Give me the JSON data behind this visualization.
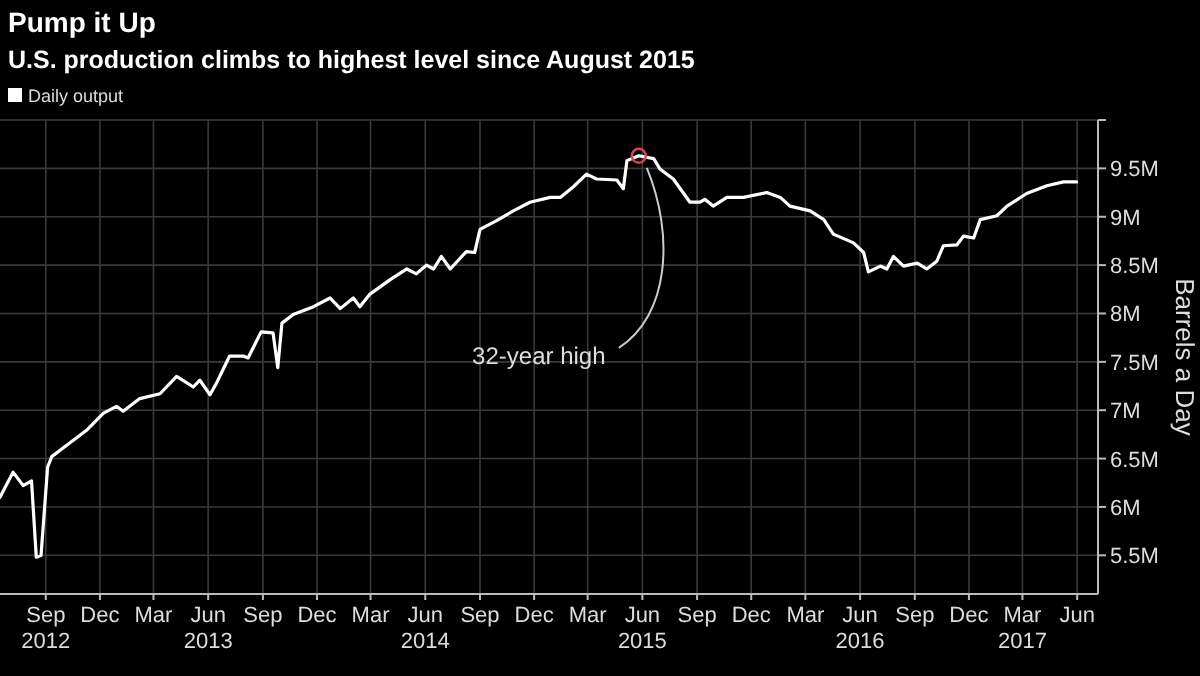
{
  "chart_data": {
    "type": "line",
    "title": "Pump it Up",
    "subtitle": "U.S. production climbs to highest level since August 2015",
    "ylabel": "Barrels a Day",
    "x": [
      "2012-06-30",
      "2012-07-22",
      "2012-08-08",
      "2012-08-22",
      "2012-08-30",
      "2012-09-07",
      "2012-09-18",
      "2012-09-25",
      "2012-10-14",
      "2012-11-22",
      "2012-12-21",
      "2013-01-12",
      "2013-01-23",
      "2013-02-20",
      "2013-03-26",
      "2013-04-23",
      "2013-05-21",
      "2013-06-01",
      "2013-06-18",
      "2013-06-29",
      "2013-07-21",
      "2013-08-13",
      "2013-08-21",
      "2013-09-12",
      "2013-10-02",
      "2013-10-10",
      "2013-10-17",
      "2013-11-05",
      "2013-12-09",
      "2014-01-06",
      "2014-01-23",
      "2014-02-14",
      "2014-02-25",
      "2014-03-14",
      "2014-04-17",
      "2014-05-15",
      "2014-05-31",
      "2014-06-17",
      "2014-06-29",
      "2014-07-12",
      "2014-07-27",
      "2014-08-23",
      "2014-09-06",
      "2014-09-15",
      "2014-10-13",
      "2014-11-10",
      "2014-12-08",
      "2015-01-11",
      "2015-01-28",
      "2015-02-19",
      "2015-03-13",
      "2015-03-30",
      "2015-05-03",
      "2015-05-14",
      "2015-05-20",
      "2015-06-09",
      "2015-07-04",
      "2015-07-15",
      "2015-08-06",
      "2015-09-03",
      "2015-09-20",
      "2015-09-28",
      "2015-10-12",
      "2015-11-04",
      "2015-12-02",
      "2016-01-10",
      "2016-02-02",
      "2016-02-18",
      "2016-03-23",
      "2016-04-15",
      "2016-05-01",
      "2016-06-04",
      "2016-06-21",
      "2016-06-29",
      "2016-07-19",
      "2016-07-30",
      "2016-08-10",
      "2016-08-27",
      "2016-09-19",
      "2016-10-05",
      "2016-10-22",
      "2016-11-02",
      "2016-11-25",
      "2016-12-06",
      "2016-12-23",
      "2017-01-03",
      "2017-01-31",
      "2017-02-17",
      "2017-03-22",
      "2017-04-25",
      "2017-05-23",
      "2017-06-14"
    ],
    "series": [
      {
        "name": "Daily output",
        "color": "#ffffff",
        "values": [
          6.1,
          6.36,
          6.22,
          6.27,
          5.48,
          5.5,
          6.41,
          6.52,
          6.61,
          6.79,
          6.97,
          7.04,
          6.99,
          7.12,
          7.17,
          7.35,
          7.24,
          7.31,
          7.16,
          7.28,
          7.56,
          7.56,
          7.54,
          7.81,
          7.8,
          7.44,
          7.9,
          7.99,
          8.07,
          8.16,
          8.05,
          8.16,
          8.07,
          8.2,
          8.35,
          8.46,
          8.41,
          8.5,
          8.46,
          8.59,
          8.46,
          8.64,
          8.63,
          8.87,
          8.96,
          9.06,
          9.15,
          9.2,
          9.2,
          9.31,
          9.44,
          9.39,
          9.38,
          9.29,
          9.58,
          9.63,
          9.6,
          9.49,
          9.39,
          9.15,
          9.15,
          9.18,
          9.11,
          9.2,
          9.2,
          9.25,
          9.2,
          9.11,
          9.06,
          8.97,
          8.82,
          8.73,
          8.63,
          8.43,
          8.49,
          8.46,
          8.59,
          8.49,
          8.52,
          8.46,
          8.54,
          8.7,
          8.71,
          8.8,
          8.78,
          8.97,
          9.01,
          9.11,
          9.24,
          9.32,
          9.36,
          9.36
        ]
      }
    ],
    "xlim": [
      "2012-06-30",
      "2017-07-20"
    ],
    "xticks": [
      {
        "value": "2012-09-15",
        "label": "Sep\n2012"
      },
      {
        "value": "2012-12-15",
        "label": "Dec"
      },
      {
        "value": "2013-03-15",
        "label": "Mar"
      },
      {
        "value": "2013-06-15",
        "label": "Jun\n2013"
      },
      {
        "value": "2013-09-15",
        "label": "Sep"
      },
      {
        "value": "2013-12-15",
        "label": "Dec"
      },
      {
        "value": "2014-03-15",
        "label": "Mar"
      },
      {
        "value": "2014-06-15",
        "label": "Jun\n2014"
      },
      {
        "value": "2014-09-15",
        "label": "Sep"
      },
      {
        "value": "2014-12-15",
        "label": "Dec"
      },
      {
        "value": "2015-03-15",
        "label": "Mar"
      },
      {
        "value": "2015-06-15",
        "label": "Jun\n2015"
      },
      {
        "value": "2015-09-15",
        "label": "Sep"
      },
      {
        "value": "2015-12-15",
        "label": "Dec"
      },
      {
        "value": "2016-03-15",
        "label": "Mar"
      },
      {
        "value": "2016-06-15",
        "label": "Jun\n2016"
      },
      {
        "value": "2016-09-15",
        "label": "Sep"
      },
      {
        "value": "2016-12-15",
        "label": "Dec"
      },
      {
        "value": "2017-03-15",
        "label": "Mar\n2017"
      },
      {
        "value": "2017-06-15",
        "label": "Jun"
      }
    ],
    "ylim": [
      5.1,
      10
    ],
    "yticks": [
      {
        "value": 5.5,
        "label": "5.5M"
      },
      {
        "value": 6,
        "label": "6M"
      },
      {
        "value": 6.5,
        "label": "6.5M"
      },
      {
        "value": 7,
        "label": "7M"
      },
      {
        "value": 7.5,
        "label": "7.5M"
      },
      {
        "value": 8,
        "label": "8M"
      },
      {
        "value": 8.5,
        "label": "8.5M"
      },
      {
        "value": 9,
        "label": "9M"
      },
      {
        "value": 9.5,
        "label": "9.5M"
      },
      {
        "value": 10,
        "label": null
      }
    ],
    "annotations": [
      {
        "text": "32-year high",
        "x": "2015-06-09",
        "y": 9.63
      }
    ],
    "grid": true,
    "legend": "top left",
    "marker": "none",
    "line_style": "solid"
  }
}
